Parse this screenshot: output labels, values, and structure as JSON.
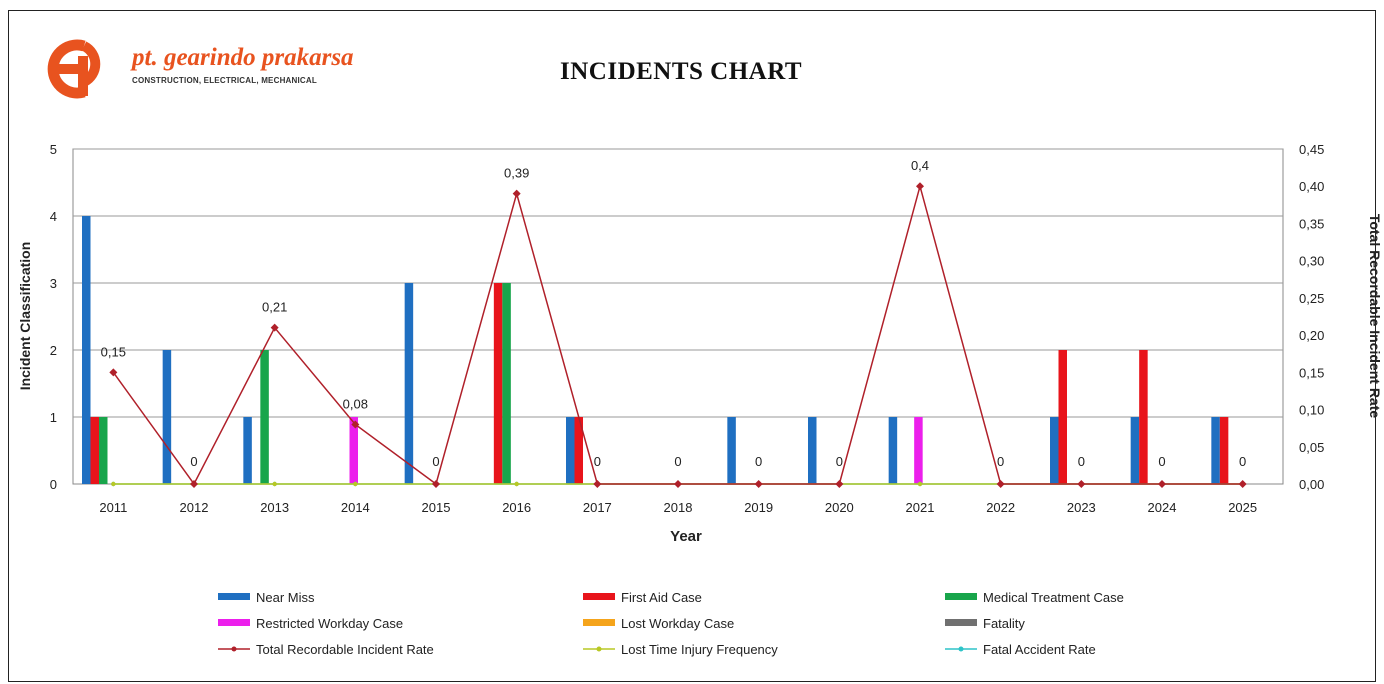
{
  "logo": {
    "name": "pt. gearindo prakarsa",
    "tagline": "CONSTRUCTION, ELECTRICAL, MECHANICAL"
  },
  "chart_data": {
    "type": "bar",
    "title": "INCIDENTS CHART",
    "xlabel": "Year",
    "ylabel": "Incident Classification",
    "y2label": "Total Recordable Incident Rate",
    "ylim": [
      0,
      5
    ],
    "y2lim": [
      0,
      0.45
    ],
    "yticks": [
      "0",
      "1",
      "2",
      "3",
      "4",
      "5"
    ],
    "y2ticks": [
      "0,00",
      "0,05",
      "0,10",
      "0,15",
      "0,20",
      "0,25",
      "0,30",
      "0,35",
      "0,40",
      "0,45"
    ],
    "categories": [
      "2011",
      "2012",
      "2013",
      "2014",
      "2015",
      "2016",
      "2017",
      "2018",
      "2019",
      "2020",
      "2021",
      "2022",
      "2023",
      "2024",
      "2025"
    ],
    "grid": true,
    "legend_position": "bottom",
    "series": [
      {
        "name": "Near Miss",
        "kind": "bar",
        "color": "#1f6fc1",
        "values": [
          4,
          2,
          1,
          0,
          3,
          0,
          1,
          0,
          1,
          1,
          1,
          0,
          1,
          1,
          1
        ]
      },
      {
        "name": "First Aid Case",
        "kind": "bar",
        "color": "#e8141b",
        "values": [
          1,
          0,
          0,
          0,
          0,
          3,
          1,
          0,
          0,
          0,
          0,
          0,
          2,
          2,
          1
        ]
      },
      {
        "name": "Medical Treatment Case",
        "kind": "bar",
        "color": "#18a54b",
        "values": [
          1,
          0,
          2,
          0,
          0,
          3,
          0,
          0,
          0,
          0,
          0,
          0,
          0,
          0,
          0
        ]
      },
      {
        "name": "Restricted Workday Case",
        "kind": "bar",
        "color": "#ec1fec",
        "values": [
          0,
          0,
          0,
          1,
          0,
          0,
          0,
          0,
          0,
          0,
          1,
          0,
          0,
          0,
          0
        ]
      },
      {
        "name": "Lost Workday Case",
        "kind": "bar",
        "color": "#f5a41b",
        "values": [
          0,
          0,
          0,
          0,
          0,
          0,
          0,
          0,
          0,
          0,
          0,
          0,
          0,
          0,
          0
        ]
      },
      {
        "name": "Fatality",
        "kind": "bar",
        "color": "#707070",
        "values": [
          0,
          0,
          0,
          0,
          0,
          0,
          0,
          0,
          0,
          0,
          0,
          0,
          0,
          0,
          0
        ]
      },
      {
        "name": "Total Recordable Incident Rate",
        "kind": "line",
        "axis": "right",
        "color": "#b0202a",
        "values": [
          0.15,
          0,
          0.21,
          0.08,
          0,
          0.39,
          0,
          0,
          0,
          0,
          0.4,
          0,
          0,
          0,
          0
        ],
        "labels": [
          "0,15",
          "0",
          "0,21",
          "0,08",
          "0",
          "0,39",
          "0",
          "0",
          "0",
          "0",
          "0,4",
          "0",
          "0",
          "0",
          "0"
        ]
      },
      {
        "name": "Lost Time Injury Frequency",
        "kind": "line",
        "axis": "right",
        "color": "#b9c824",
        "values": [
          0,
          0,
          0,
          0,
          0,
          0,
          0,
          0,
          0,
          0,
          0,
          0,
          0,
          0,
          0
        ]
      },
      {
        "name": "Fatal Accident Rate",
        "kind": "line",
        "axis": "right",
        "color": "#2ec4c8",
        "values": [
          0,
          0,
          0,
          0,
          0,
          0,
          0,
          0,
          0,
          0,
          0,
          0,
          0,
          0,
          0
        ]
      }
    ]
  }
}
